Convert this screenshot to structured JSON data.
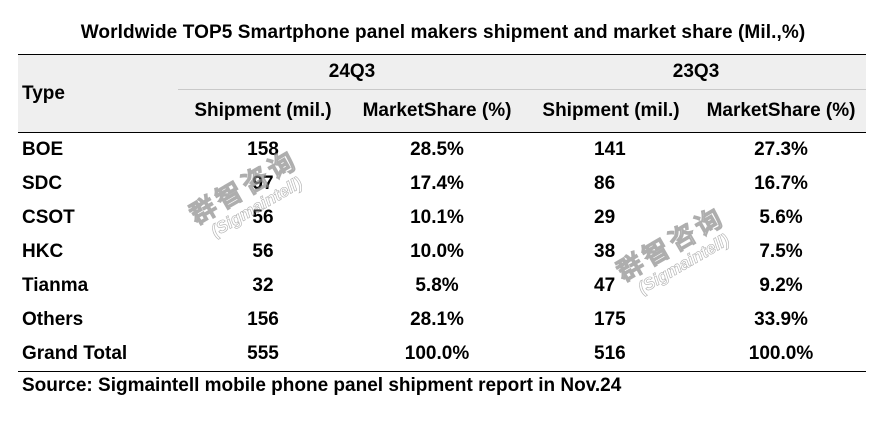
{
  "title": "Worldwide TOP5 Smartphone panel makers shipment and market share (Mil.,%)",
  "header": {
    "type_label": "Type",
    "period_1": "24Q3",
    "period_2": "23Q3",
    "shipment_label": "Shipment (mil.)",
    "share_label": "MarketShare (%)"
  },
  "rows": [
    {
      "type": "BOE",
      "ship_24": "158",
      "share_24": "28.5%",
      "ship_23": "141",
      "share_23": "27.3%"
    },
    {
      "type": "SDC",
      "ship_24": "97",
      "share_24": "17.4%",
      "ship_23": "86",
      "share_23": "16.7%"
    },
    {
      "type": "CSOT",
      "ship_24": "56",
      "share_24": "10.1%",
      "ship_23": "29",
      "share_23": "5.6%"
    },
    {
      "type": "HKC",
      "ship_24": "56",
      "share_24": "10.0%",
      "ship_23": "38",
      "share_23": "7.5%"
    },
    {
      "type": "Tianma",
      "ship_24": "32",
      "share_24": "5.8%",
      "ship_23": "47",
      "share_23": "9.2%"
    },
    {
      "type": "Others",
      "ship_24": "156",
      "share_24": "28.1%",
      "ship_23": "175",
      "share_23": "33.9%"
    }
  ],
  "total": {
    "type": "Grand Total",
    "ship_24": "555",
    "share_24": "100.0%",
    "ship_23": "516",
    "share_23": "100.0%"
  },
  "source": "Source: Sigmaintell mobile phone panel shipment report in Nov.24",
  "watermarks": [
    {
      "cn": "群智咨询",
      "en": "(Sigmaintell)"
    },
    {
      "cn": "群智咨询",
      "en": "(Sigmaintell)"
    }
  ]
}
